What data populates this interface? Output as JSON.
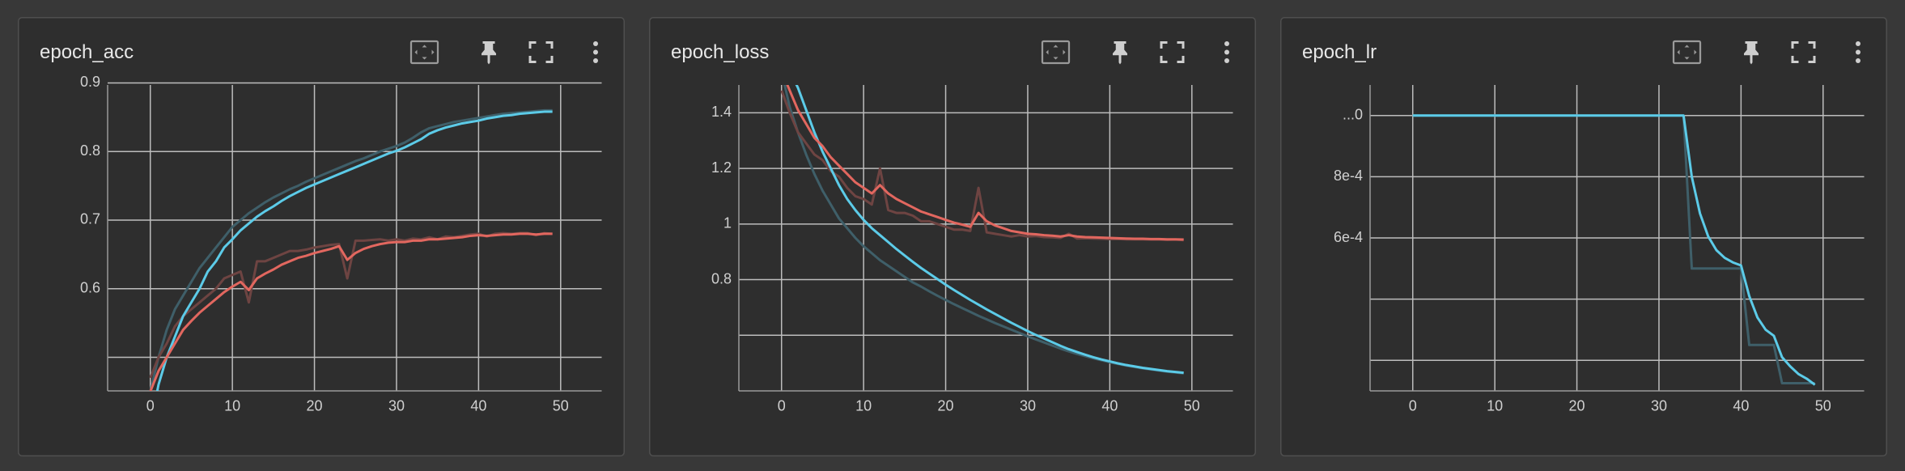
{
  "chart_data": [
    {
      "type": "line",
      "title": "epoch_acc",
      "x": [
        0,
        1,
        2,
        3,
        4,
        5,
        6,
        7,
        8,
        9,
        10,
        11,
        12,
        13,
        14,
        15,
        16,
        17,
        18,
        19,
        20,
        21,
        22,
        23,
        24,
        25,
        26,
        27,
        28,
        29,
        30,
        31,
        32,
        33,
        34,
        35,
        36,
        37,
        38,
        39,
        40,
        41,
        42,
        43,
        44,
        45,
        46,
        47,
        48,
        49
      ],
      "xlim": [
        -5.2,
        55
      ],
      "xticks": [
        0,
        10,
        20,
        30,
        40,
        50
      ],
      "ylim": [
        0.451,
        0.897
      ],
      "yticks": [
        0.6,
        0.7,
        0.8,
        0.9
      ],
      "ygrid": [
        0.5
      ],
      "grid": true,
      "series": [
        {
          "color": "#3f5f69",
          "values": [
            0.45,
            0.5,
            0.54,
            0.57,
            0.59,
            0.61,
            0.63,
            0.645,
            0.66,
            0.675,
            0.69,
            0.7,
            0.71,
            0.718,
            0.726,
            0.733,
            0.739,
            0.745,
            0.75,
            0.756,
            0.761,
            0.766,
            0.771,
            0.776,
            0.781,
            0.786,
            0.79,
            0.795,
            0.8,
            0.804,
            0.808,
            0.813,
            0.82,
            0.828,
            0.834,
            0.837,
            0.84,
            0.843,
            0.845,
            0.847,
            0.849,
            0.851,
            0.853,
            0.855,
            0.856,
            0.857,
            0.858,
            0.859,
            0.86,
            0.86
          ]
        },
        {
          "color": "#6e4442",
          "values": [
            0.47,
            0.5,
            0.52,
            0.545,
            0.56,
            0.57,
            0.58,
            0.59,
            0.6,
            0.615,
            0.62,
            0.625,
            0.58,
            0.64,
            0.64,
            0.645,
            0.65,
            0.655,
            0.655,
            0.657,
            0.66,
            0.662,
            0.664,
            0.665,
            0.615,
            0.67,
            0.67,
            0.671,
            0.672,
            0.67,
            0.672,
            0.67,
            0.673,
            0.672,
            0.675,
            0.672,
            0.676,
            0.675,
            0.677,
            0.679,
            0.68,
            0.676,
            0.68,
            0.681,
            0.68,
            0.681,
            0.681,
            0.678,
            0.681,
            0.68
          ]
        },
        {
          "color": "#5ccbe8",
          "values": [
            0.4,
            0.46,
            0.5,
            0.53,
            0.56,
            0.58,
            0.6,
            0.625,
            0.64,
            0.66,
            0.672,
            0.685,
            0.695,
            0.705,
            0.713,
            0.72,
            0.728,
            0.735,
            0.741,
            0.747,
            0.752,
            0.757,
            0.762,
            0.767,
            0.772,
            0.777,
            0.782,
            0.787,
            0.792,
            0.797,
            0.801,
            0.806,
            0.812,
            0.818,
            0.826,
            0.831,
            0.835,
            0.838,
            0.841,
            0.843,
            0.845,
            0.848,
            0.85,
            0.852,
            0.853,
            0.855,
            0.856,
            0.857,
            0.858,
            0.858
          ]
        },
        {
          "color": "#e2675f",
          "values": [
            0.45,
            0.48,
            0.5,
            0.52,
            0.54,
            0.553,
            0.565,
            0.575,
            0.585,
            0.595,
            0.603,
            0.61,
            0.598,
            0.615,
            0.622,
            0.628,
            0.635,
            0.64,
            0.645,
            0.648,
            0.652,
            0.655,
            0.658,
            0.662,
            0.642,
            0.652,
            0.658,
            0.662,
            0.665,
            0.667,
            0.668,
            0.668,
            0.67,
            0.67,
            0.672,
            0.672,
            0.673,
            0.674,
            0.675,
            0.677,
            0.678,
            0.677,
            0.678,
            0.679,
            0.679,
            0.68,
            0.68,
            0.679,
            0.68,
            0.68
          ]
        }
      ]
    },
    {
      "type": "line",
      "title": "epoch_loss",
      "x": [
        0,
        1,
        2,
        3,
        4,
        5,
        6,
        7,
        8,
        9,
        10,
        11,
        12,
        13,
        14,
        15,
        16,
        17,
        18,
        19,
        20,
        21,
        22,
        23,
        24,
        25,
        26,
        27,
        28,
        29,
        30,
        31,
        32,
        33,
        34,
        35,
        36,
        37,
        38,
        39,
        40,
        41,
        42,
        43,
        44,
        45,
        46,
        47,
        48,
        49
      ],
      "xlim": [
        -5.2,
        55
      ],
      "xticks": [
        0,
        10,
        20,
        30,
        40,
        50
      ],
      "ylim": [
        0.4,
        1.5
      ],
      "yticks": [
        0.8,
        1,
        1.2,
        1.4
      ],
      "ygrid": [
        0.6
      ],
      "grid": true,
      "series": [
        {
          "color": "#3f5f69",
          "values": [
            1.55,
            1.42,
            1.33,
            1.25,
            1.18,
            1.12,
            1.07,
            1.02,
            0.985,
            0.95,
            0.92,
            0.895,
            0.87,
            0.85,
            0.83,
            0.81,
            0.79,
            0.775,
            0.758,
            0.742,
            0.727,
            0.712,
            0.698,
            0.684,
            0.67,
            0.657,
            0.644,
            0.632,
            0.62,
            0.608,
            0.596,
            0.585,
            0.574,
            0.563,
            0.552,
            0.542,
            0.533,
            0.525,
            0.517,
            0.51,
            0.503,
            0.497,
            0.491,
            0.486,
            0.481,
            0.477,
            0.473,
            0.469,
            0.466,
            0.463
          ]
        },
        {
          "color": "#6e4442",
          "values": [
            1.48,
            1.4,
            1.33,
            1.29,
            1.25,
            1.23,
            1.19,
            1.17,
            1.13,
            1.1,
            1.09,
            1.07,
            1.2,
            1.05,
            1.04,
            1.04,
            1.03,
            1.01,
            1.01,
            1,
            0.99,
            0.98,
            0.98,
            0.975,
            1.13,
            0.97,
            0.965,
            0.96,
            0.955,
            0.96,
            0.955,
            0.957,
            0.953,
            0.952,
            0.95,
            0.965,
            0.948,
            0.949,
            0.948,
            0.947,
            0.946,
            0.946,
            0.945,
            0.945,
            0.945,
            0.944,
            0.944,
            0.943,
            0.944,
            0.942
          ]
        },
        {
          "color": "#5ccbe8",
          "values": [
            1.62,
            1.55,
            1.49,
            1.41,
            1.33,
            1.26,
            1.2,
            1.14,
            1.09,
            1.05,
            1.015,
            0.985,
            0.96,
            0.935,
            0.91,
            0.887,
            0.864,
            0.842,
            0.822,
            0.802,
            0.782,
            0.763,
            0.745,
            0.727,
            0.71,
            0.693,
            0.677,
            0.661,
            0.645,
            0.63,
            0.615,
            0.601,
            0.588,
            0.575,
            0.562,
            0.55,
            0.54,
            0.53,
            0.521,
            0.513,
            0.506,
            0.499,
            0.493,
            0.488,
            0.483,
            0.479,
            0.475,
            0.471,
            0.468,
            0.465
          ]
        },
        {
          "color": "#e2675f",
          "values": [
            1.55,
            1.48,
            1.41,
            1.36,
            1.31,
            1.28,
            1.24,
            1.21,
            1.18,
            1.15,
            1.13,
            1.11,
            1.14,
            1.11,
            1.09,
            1.075,
            1.06,
            1.045,
            1.035,
            1.025,
            1.015,
            1.005,
            0.998,
            0.99,
            1.04,
            1.01,
            0.995,
            0.985,
            0.975,
            0.97,
            0.965,
            0.963,
            0.96,
            0.958,
            0.955,
            0.96,
            0.955,
            0.953,
            0.952,
            0.951,
            0.95,
            0.949,
            0.948,
            0.947,
            0.947,
            0.946,
            0.946,
            0.945,
            0.945,
            0.944
          ]
        }
      ]
    },
    {
      "type": "line",
      "title": "epoch_lr",
      "x": [
        0,
        1,
        2,
        3,
        4,
        5,
        6,
        7,
        8,
        9,
        10,
        11,
        12,
        13,
        14,
        15,
        16,
        17,
        18,
        19,
        20,
        21,
        22,
        23,
        24,
        25,
        26,
        27,
        28,
        29,
        30,
        31,
        32,
        33,
        34,
        35,
        36,
        37,
        38,
        39,
        40,
        41,
        42,
        43,
        44,
        45,
        46,
        47,
        48,
        49
      ],
      "xlim": [
        -5.2,
        55
      ],
      "xticks": [
        0,
        10,
        20,
        30,
        40,
        50
      ],
      "ylim": [
        0.0001,
        0.0011
      ],
      "yticks": [
        {
          "value": 0.001,
          "label": "...0"
        },
        {
          "value": 0.0008,
          "label": "8e-4"
        },
        {
          "value": 0.0006,
          "label": "6e-4"
        }
      ],
      "ygrid": [
        0.0004,
        0.0002
      ],
      "grid": true,
      "series": [
        {
          "color": "#3f5f69",
          "values": [
            0.001,
            0.001,
            0.001,
            0.001,
            0.001,
            0.001,
            0.001,
            0.001,
            0.001,
            0.001,
            0.001,
            0.001,
            0.001,
            0.001,
            0.001,
            0.001,
            0.001,
            0.001,
            0.001,
            0.001,
            0.001,
            0.001,
            0.001,
            0.001,
            0.001,
            0.001,
            0.001,
            0.001,
            0.001,
            0.001,
            0.001,
            0.001,
            0.001,
            0.001,
            0.0005,
            0.0005,
            0.0005,
            0.0005,
            0.0005,
            0.0005,
            0.0005,
            0.00025,
            0.00025,
            0.00025,
            0.00025,
            0.000125,
            0.000125,
            0.000125,
            0.000125,
            0.000125
          ]
        },
        {
          "color": "#5ccbe8",
          "values": [
            0.001,
            0.001,
            0.001,
            0.001,
            0.001,
            0.001,
            0.001,
            0.001,
            0.001,
            0.001,
            0.001,
            0.001,
            0.001,
            0.001,
            0.001,
            0.001,
            0.001,
            0.001,
            0.001,
            0.001,
            0.001,
            0.001,
            0.001,
            0.001,
            0.001,
            0.001,
            0.001,
            0.001,
            0.001,
            0.001,
            0.001,
            0.001,
            0.001,
            0.001,
            0.0008,
            0.00068,
            0.000605,
            0.00056,
            0.000535,
            0.00052,
            0.00051,
            0.00041,
            0.00034,
            0.0003,
            0.00028,
            0.00021,
            0.00018,
            0.000155,
            0.00014,
            0.00012
          ]
        }
      ]
    }
  ]
}
